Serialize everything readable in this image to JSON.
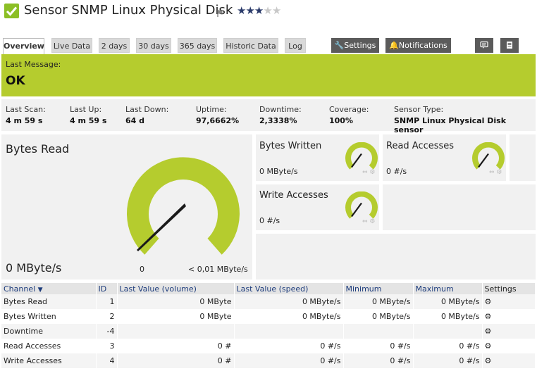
{
  "header": {
    "title": "Sensor SNMP Linux Physical Disk",
    "stars_filled": 3,
    "stars_total": 5,
    "star_glyphs": "★★★★★"
  },
  "tabs": [
    {
      "label": "Overview"
    },
    {
      "label": "Live Data"
    },
    {
      "label": "2 days"
    },
    {
      "label": "30 days"
    },
    {
      "label": "365 days"
    },
    {
      "label": "Historic Data"
    },
    {
      "label": "Log"
    }
  ],
  "actions": {
    "settings_label": "Settings",
    "notifications_label": "Notifications"
  },
  "message": {
    "label": "Last Message:",
    "value": "OK"
  },
  "stats": [
    {
      "label": "Last Scan:",
      "value": "4 m 59 s"
    },
    {
      "label": "Last Up:",
      "value": "4 m 59 s"
    },
    {
      "label": "Last Down:",
      "value": "64 d"
    },
    {
      "label": "Uptime:",
      "value": "97,6662%"
    },
    {
      "label": "Downtime:",
      "value": "2,3338%"
    },
    {
      "label": "Coverage:",
      "value": "100%"
    },
    {
      "label": "Sensor Type:",
      "value": "SNMP Linux Physical Disk sensor"
    }
  ],
  "main_gauge": {
    "title": "Bytes Read",
    "value": "0 MByte/s",
    "min_label": "0",
    "max_label": "< 0,01 MByte/s",
    "level": 0.0
  },
  "small_gauges": [
    {
      "title": "Bytes Written",
      "value": "0 MByte/s",
      "level": 0.0
    },
    {
      "title": "Read Accesses",
      "value": "0 #/s",
      "level": 0.0
    },
    {
      "title": "Write Accesses",
      "value": "0 #/s",
      "level": 0.0
    }
  ],
  "table": {
    "headers": [
      "Channel",
      "ID",
      "Last Value (volume)",
      "Last Value (speed)",
      "Minimum",
      "Maximum",
      "Settings"
    ],
    "rows": [
      {
        "channel": "Bytes Read",
        "id": "1",
        "volume": "0 MByte",
        "speed": "0 MByte/s",
        "min": "0 MByte/s",
        "max": "0 MByte/s"
      },
      {
        "channel": "Bytes Written",
        "id": "2",
        "volume": "0 MByte",
        "speed": "0 MByte/s",
        "min": "0 MByte/s",
        "max": "0 MByte/s"
      },
      {
        "channel": "Downtime",
        "id": "-4",
        "volume": "",
        "speed": "",
        "min": "",
        "max": ""
      },
      {
        "channel": "Read Accesses",
        "id": "3",
        "volume": "0 #",
        "speed": "0 #/s",
        "min": "0 #/s",
        "max": "0 #/s"
      },
      {
        "channel": "Write Accesses",
        "id": "4",
        "volume": "0 #",
        "speed": "0 #/s",
        "min": "0 #/s",
        "max": "0 #/s"
      }
    ]
  },
  "colors": {
    "ok_green": "#b5cc2e",
    "gauge_green": "#b5cc2e",
    "check_green": "#8cbf26",
    "dark_button": "#5b5b5b",
    "link_blue": "#1b3a7a"
  }
}
